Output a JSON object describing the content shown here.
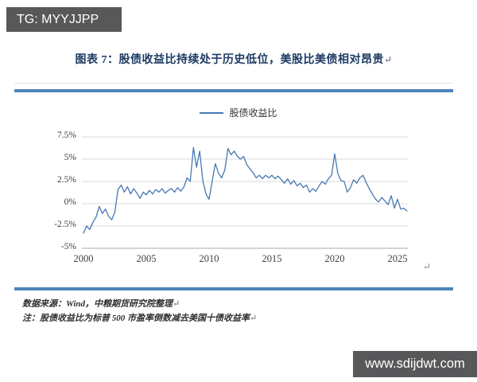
{
  "badges": {
    "telegram": "TG: MYYJJPP",
    "watermark": "www.sdijdwt.com"
  },
  "figure": {
    "title": "图表 7：股债收益比持续处于历史低位，美股比美债相对昂贵",
    "paragraph_mark": "↵",
    "source_note": "数据来源：Wind，中粮期货研究院整理",
    "method_note": "注：股债收益比为标普 500 市盈率倒数减去美国十债收益率"
  },
  "colors": {
    "accent_rule": "#4f86ba",
    "series_line": "#4778b3",
    "grid": "#d9d9d9",
    "axis": "#ababab",
    "title_text": "#1c3a63",
    "badge_bg": "#58585a"
  },
  "chart_data": {
    "type": "line",
    "title": "",
    "xlabel": "",
    "ylabel": "",
    "grid": true,
    "legend_position": "top",
    "x": {
      "min": 2000,
      "max": 2026.2,
      "ticks": [
        2000,
        2005,
        2010,
        2015,
        2020,
        2025
      ],
      "tick_labels": [
        "2000",
        "2005",
        "2010",
        "2015",
        "2020",
        "2025"
      ]
    },
    "y": {
      "min": -5,
      "max": 7.5,
      "ticks": [
        7.5,
        5,
        2.5,
        0,
        -2.5,
        -5
      ],
      "tick_labels": [
        "7.5%",
        "5%",
        "2.5%",
        "0%",
        "-2.5%",
        "-5%"
      ]
    },
    "series": [
      {
        "name": "股债收益比",
        "color": "#4778b3",
        "points": [
          [
            2000.0,
            -3.3
          ],
          [
            2000.25,
            -2.5
          ],
          [
            2000.5,
            -2.9
          ],
          [
            2000.75,
            -2.1
          ],
          [
            2001.0,
            -1.5
          ],
          [
            2001.25,
            -0.3
          ],
          [
            2001.5,
            -1.1
          ],
          [
            2001.75,
            -0.6
          ],
          [
            2002.0,
            -1.4
          ],
          [
            2002.25,
            -1.8
          ],
          [
            2002.5,
            -0.9
          ],
          [
            2002.75,
            1.6
          ],
          [
            2003.0,
            2.1
          ],
          [
            2003.25,
            1.3
          ],
          [
            2003.5,
            1.9
          ],
          [
            2003.75,
            1.1
          ],
          [
            2004.0,
            1.7
          ],
          [
            2004.25,
            1.2
          ],
          [
            2004.5,
            0.6
          ],
          [
            2004.75,
            1.3
          ],
          [
            2005.0,
            1.0
          ],
          [
            2005.25,
            1.5
          ],
          [
            2005.5,
            1.1
          ],
          [
            2005.75,
            1.6
          ],
          [
            2006.0,
            1.3
          ],
          [
            2006.25,
            1.7
          ],
          [
            2006.5,
            1.2
          ],
          [
            2006.75,
            1.5
          ],
          [
            2007.0,
            1.7
          ],
          [
            2007.25,
            1.3
          ],
          [
            2007.5,
            1.8
          ],
          [
            2007.75,
            1.4
          ],
          [
            2008.0,
            1.9
          ],
          [
            2008.25,
            2.9
          ],
          [
            2008.5,
            2.5
          ],
          [
            2008.75,
            6.3
          ],
          [
            2009.0,
            4.1
          ],
          [
            2009.25,
            5.9
          ],
          [
            2009.5,
            2.6
          ],
          [
            2009.75,
            1.1
          ],
          [
            2010.0,
            0.5
          ],
          [
            2010.25,
            2.6
          ],
          [
            2010.5,
            4.5
          ],
          [
            2010.75,
            3.4
          ],
          [
            2011.0,
            2.9
          ],
          [
            2011.25,
            3.8
          ],
          [
            2011.5,
            6.2
          ],
          [
            2011.75,
            5.5
          ],
          [
            2012.0,
            5.9
          ],
          [
            2012.25,
            5.3
          ],
          [
            2012.5,
            5.0
          ],
          [
            2012.75,
            5.3
          ],
          [
            2013.0,
            4.4
          ],
          [
            2013.25,
            3.9
          ],
          [
            2013.5,
            3.5
          ],
          [
            2013.75,
            2.9
          ],
          [
            2014.0,
            3.2
          ],
          [
            2014.25,
            2.8
          ],
          [
            2014.5,
            3.2
          ],
          [
            2014.75,
            2.9
          ],
          [
            2015.0,
            3.2
          ],
          [
            2015.25,
            2.8
          ],
          [
            2015.5,
            3.1
          ],
          [
            2015.75,
            2.7
          ],
          [
            2016.0,
            2.3
          ],
          [
            2016.25,
            2.8
          ],
          [
            2016.5,
            2.2
          ],
          [
            2016.75,
            2.6
          ],
          [
            2017.0,
            2.0
          ],
          [
            2017.25,
            2.3
          ],
          [
            2017.5,
            1.8
          ],
          [
            2017.75,
            2.1
          ],
          [
            2018.0,
            1.3
          ],
          [
            2018.25,
            1.7
          ],
          [
            2018.5,
            1.4
          ],
          [
            2018.75,
            2.0
          ],
          [
            2019.0,
            2.5
          ],
          [
            2019.25,
            2.2
          ],
          [
            2019.5,
            2.8
          ],
          [
            2019.75,
            3.2
          ],
          [
            2020.0,
            5.6
          ],
          [
            2020.25,
            3.4
          ],
          [
            2020.5,
            2.6
          ],
          [
            2020.75,
            2.5
          ],
          [
            2021.0,
            1.3
          ],
          [
            2021.25,
            1.8
          ],
          [
            2021.5,
            2.7
          ],
          [
            2021.75,
            2.3
          ],
          [
            2022.0,
            2.9
          ],
          [
            2022.25,
            3.2
          ],
          [
            2022.5,
            2.4
          ],
          [
            2022.75,
            1.7
          ],
          [
            2023.0,
            1.1
          ],
          [
            2023.25,
            0.5
          ],
          [
            2023.5,
            0.2
          ],
          [
            2023.75,
            0.7
          ],
          [
            2024.0,
            0.3
          ],
          [
            2024.25,
            -0.1
          ],
          [
            2024.5,
            0.9
          ],
          [
            2024.75,
            -0.5
          ],
          [
            2025.0,
            0.5
          ],
          [
            2025.25,
            -0.6
          ],
          [
            2025.5,
            -0.5
          ],
          [
            2025.75,
            -0.8
          ]
        ]
      }
    ]
  }
}
